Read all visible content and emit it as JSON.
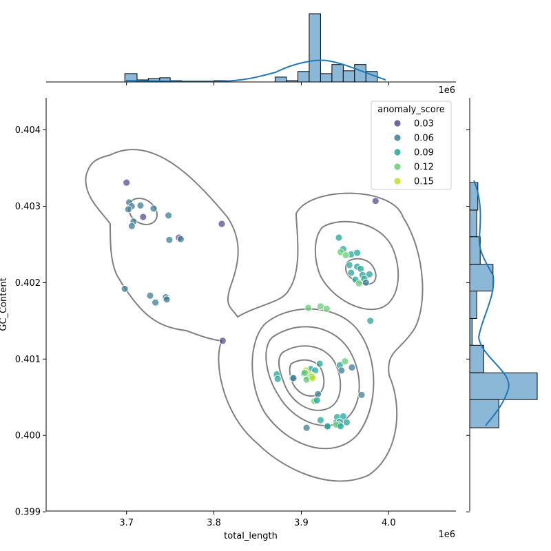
{
  "chart_data": {
    "type": "scatter",
    "xlabel": "total_length",
    "ylabel": "GC_Content",
    "x_offset_label": "1e6",
    "x_ticks": [
      "3.7",
      "3.8",
      "3.9",
      "4.0"
    ],
    "y_ticks": [
      "0.399",
      "0.400",
      "0.401",
      "0.402",
      "0.403",
      "0.404"
    ],
    "legend": {
      "title": "anomaly_score",
      "entries": [
        {
          "label": "0.03",
          "color": "#5b4a8f"
        },
        {
          "label": "0.06",
          "color": "#3d7c96"
        },
        {
          "label": "0.09",
          "color": "#26a69a"
        },
        {
          "label": "0.12",
          "color": "#66cc77"
        },
        {
          "label": "0.15",
          "color": "#c2df23"
        }
      ]
    },
    "grid": false,
    "points": [
      [
        3700000,
        0.40331,
        0.03
      ],
      [
        3703000,
        0.40305,
        0.05
      ],
      [
        3706000,
        0.403,
        0.06
      ],
      [
        3702000,
        0.40296,
        0.05
      ],
      [
        3716000,
        0.40301,
        0.06
      ],
      [
        3731000,
        0.40297,
        0.06
      ],
      [
        3719000,
        0.40286,
        0.04
      ],
      [
        3708000,
        0.4028,
        0.07
      ],
      [
        3706000,
        0.40274,
        0.06
      ],
      [
        3748000,
        0.40288,
        0.06
      ],
      [
        3760000,
        0.40259,
        0.03
      ],
      [
        3762000,
        0.40257,
        0.06
      ],
      [
        3749000,
        0.40256,
        0.06
      ],
      [
        3809000,
        0.40277,
        0.04
      ],
      [
        3698000,
        0.40192,
        0.06
      ],
      [
        3727000,
        0.40183,
        0.06
      ],
      [
        3745000,
        0.40181,
        0.05
      ],
      [
        3746000,
        0.40178,
        0.06
      ],
      [
        3733000,
        0.40174,
        0.05
      ],
      [
        3810000,
        0.40124,
        0.03
      ],
      [
        3985000,
        0.40307,
        0.03
      ],
      [
        3943000,
        0.40259,
        0.08
      ],
      [
        3948000,
        0.40244,
        0.09
      ],
      [
        3957000,
        0.40237,
        0.09
      ],
      [
        3964000,
        0.40239,
        0.1
      ],
      [
        3945000,
        0.4024,
        0.11
      ],
      [
        3951000,
        0.40236,
        0.12
      ],
      [
        3955000,
        0.40223,
        0.09
      ],
      [
        3964000,
        0.40221,
        0.1
      ],
      [
        3968000,
        0.40218,
        0.09
      ],
      [
        3957000,
        0.40213,
        0.09
      ],
      [
        3970000,
        0.4021,
        0.1
      ],
      [
        3978000,
        0.40211,
        0.1
      ],
      [
        3962000,
        0.40204,
        0.1
      ],
      [
        3972000,
        0.40205,
        0.09
      ],
      [
        3966000,
        0.40199,
        0.11
      ],
      [
        3974000,
        0.402,
        0.07
      ],
      [
        3979000,
        0.4015,
        0.09
      ],
      [
        3908000,
        0.40167,
        0.11
      ],
      [
        3922000,
        0.40169,
        0.12
      ],
      [
        3929000,
        0.40166,
        0.11
      ],
      [
        3944000,
        0.40092,
        0.08
      ],
      [
        3921000,
        0.40094,
        0.1
      ],
      [
        3946000,
        0.40085,
        0.05
      ],
      [
        3958000,
        0.40089,
        0.05
      ],
      [
        3950000,
        0.40097,
        0.11
      ],
      [
        3911000,
        0.40087,
        0.1
      ],
      [
        3905000,
        0.40085,
        0.15
      ],
      [
        3916000,
        0.40085,
        0.09
      ],
      [
        3903000,
        0.40081,
        0.1
      ],
      [
        3909000,
        0.4008,
        0.15
      ],
      [
        3913000,
        0.40078,
        0.14
      ],
      [
        3906000,
        0.40076,
        0.11
      ],
      [
        3906000,
        0.40073,
        0.12
      ],
      [
        3912000,
        0.40077,
        0.13
      ],
      [
        3904000,
        0.40082,
        0.13
      ],
      [
        3913000,
        0.40075,
        0.15
      ],
      [
        3872000,
        0.4008,
        0.09
      ],
      [
        3873000,
        0.40074,
        0.08
      ],
      [
        3890000,
        0.40075,
        0.07
      ],
      [
        3891000,
        0.40075,
        0.05
      ],
      [
        3919000,
        0.40054,
        0.05
      ],
      [
        3915000,
        0.40045,
        0.11
      ],
      [
        3918000,
        0.40046,
        0.09
      ],
      [
        3969000,
        0.40053,
        0.07
      ],
      [
        3941000,
        0.40024,
        0.1
      ],
      [
        3948000,
        0.40025,
        0.09
      ],
      [
        3922000,
        0.4002,
        0.09
      ],
      [
        3940000,
        0.40017,
        0.09
      ],
      [
        3944000,
        0.40018,
        0.09
      ],
      [
        3952000,
        0.40017,
        0.1
      ],
      [
        3943000,
        0.40014,
        0.08
      ],
      [
        3940000,
        0.40014,
        0.11
      ],
      [
        3945000,
        0.40012,
        0.09
      ],
      [
        3930000,
        0.40011,
        0.07
      ],
      [
        3930000,
        0.40012,
        0.1
      ],
      [
        3906000,
        0.4001,
        0.06
      ]
    ],
    "x_histogram": {
      "bins": [
        [
          3698000,
          3712000,
          12
        ],
        [
          3712000,
          3725000,
          3
        ],
        [
          3725000,
          3738000,
          5
        ],
        [
          3738000,
          3750000,
          6
        ],
        [
          3750000,
          3763000,
          2
        ],
        [
          3800000,
          3815000,
          2
        ],
        [
          3870000,
          3883000,
          7
        ],
        [
          3883000,
          3896000,
          2
        ],
        [
          3896000,
          3909000,
          15
        ],
        [
          3909000,
          3922000,
          98
        ],
        [
          3922000,
          3935000,
          12
        ],
        [
          3935000,
          3948000,
          25
        ],
        [
          3948000,
          3961000,
          16
        ],
        [
          3961000,
          3974000,
          25
        ],
        [
          3974000,
          3987000,
          15
        ]
      ]
    },
    "y_histogram": {
      "bins": [
        [
          0.40295,
          0.40331,
          7
        ],
        [
          0.4026,
          0.40295,
          6
        ],
        [
          0.40224,
          0.4026,
          9
        ],
        [
          0.40189,
          0.40224,
          20
        ],
        [
          0.40153,
          0.40189,
          6
        ],
        [
          0.40118,
          0.40153,
          2
        ],
        [
          0.40082,
          0.40118,
          12
        ],
        [
          0.40047,
          0.40082,
          58
        ],
        [
          0.4001,
          0.40047,
          25
        ]
      ]
    },
    "xlim": [
      3608000,
      4077000
    ],
    "ylim": [
      0.39901,
      0.40442
    ]
  }
}
